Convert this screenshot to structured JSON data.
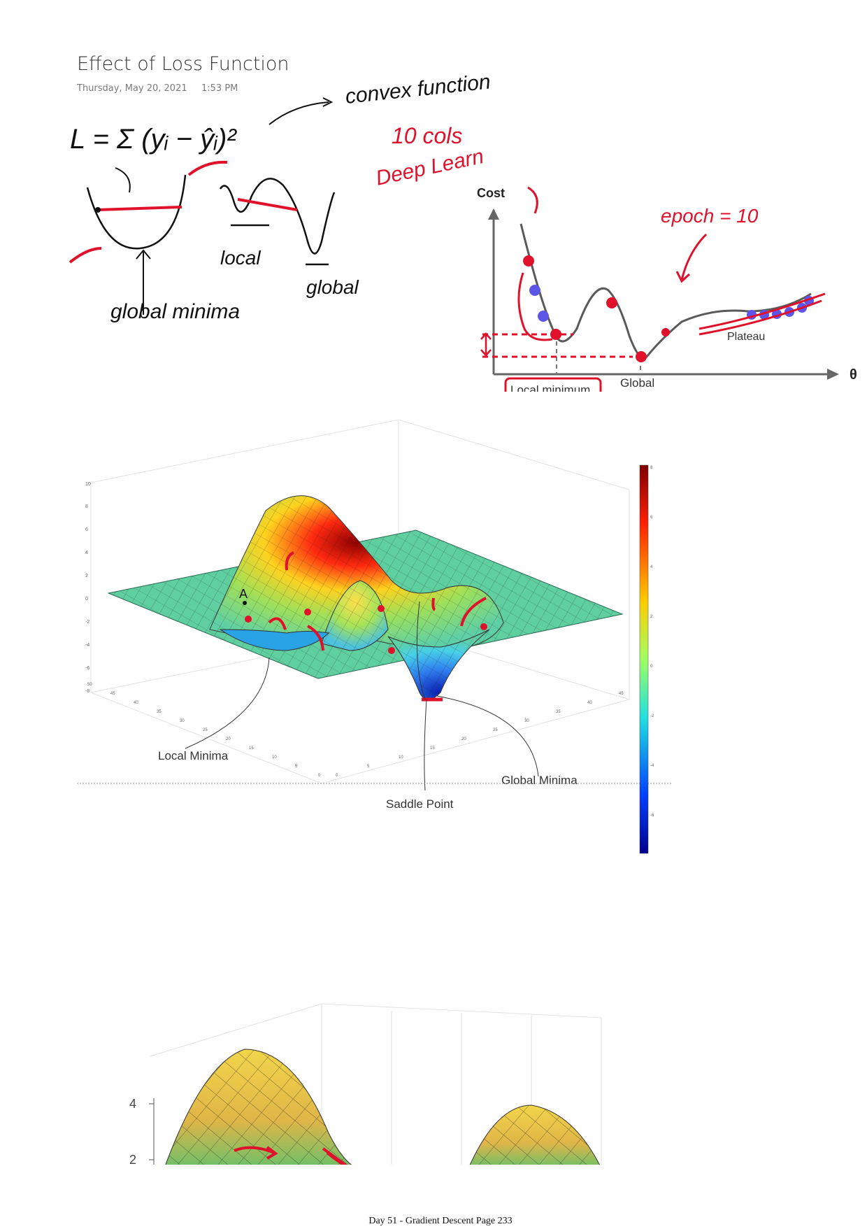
{
  "page": {
    "title": "Effect of Loss Function",
    "date": "Thursday, May 20, 2021",
    "time": "1:53 PM",
    "footer": "Day 51 - Gradient Descent Page 233"
  },
  "notes": {
    "formula": "L = Σ (yᵢ − ŷᵢ)²",
    "convex": "convex function",
    "cols": "10 cols",
    "deep_learn": "Deep Learn",
    "epoch": "epoch = 10",
    "global_minima": "global minima",
    "local": "local",
    "global": "global"
  },
  "cost_figure": {
    "y_axis": "Cost",
    "x_axis": "θ",
    "local_minimum": "Local minimum",
    "global_minimum": "Global minimum",
    "plateau": "Plateau"
  },
  "surface_figure": {
    "label_a": "A",
    "local_minima": "Local Minima",
    "global_minima": "Global Minima",
    "saddle_point": "Saddle Point",
    "z_ticks": [
      "10",
      "8",
      "6",
      "4",
      "2",
      "0",
      "-2",
      "-4",
      "-6",
      "-8"
    ],
    "colorbar_ticks": [
      "8",
      "6",
      "4",
      "2",
      "0",
      "-2",
      "-4",
      "-6"
    ],
    "x_ticks": [
      "0",
      "5",
      "10",
      "15",
      "20",
      "25",
      "30",
      "35",
      "40",
      "45",
      "50"
    ],
    "y_ticks": [
      "0",
      "5",
      "10",
      "15",
      "20",
      "25",
      "30",
      "35",
      "40",
      "45"
    ]
  },
  "bottom_figure": {
    "z_ticks": [
      "4",
      "2"
    ]
  },
  "colors": {
    "ink": "#111111",
    "annotation_red": "#e0112b",
    "curve_gray": "#5a5a5a",
    "blue_dot": "#5c55e8",
    "red_dot": "#e0112b"
  }
}
